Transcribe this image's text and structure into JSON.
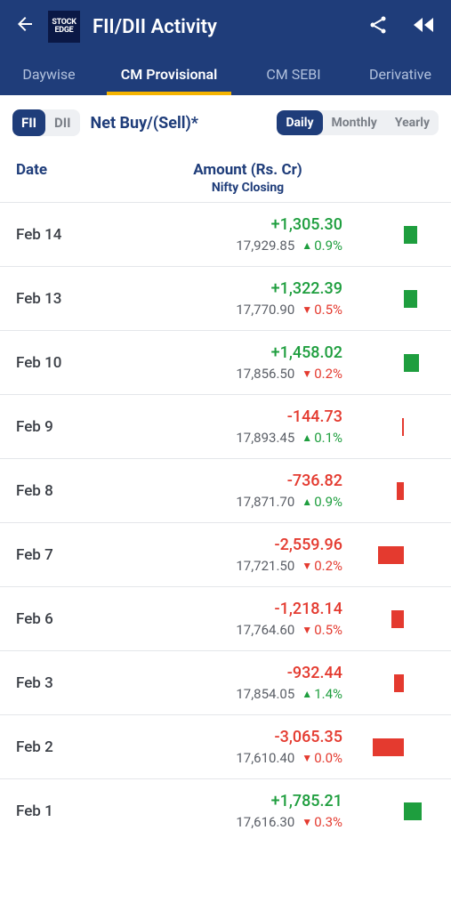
{
  "header": {
    "title": "FII/DII Activity",
    "logo_top": "STOCK",
    "logo_bottom": "EDGE"
  },
  "tabs": [
    {
      "label": "Daywise",
      "active": false
    },
    {
      "label": "CM Provisional",
      "active": true
    },
    {
      "label": "CM SEBI",
      "active": false
    },
    {
      "label": "Derivative",
      "active": false
    }
  ],
  "toggle": {
    "fii": "FII",
    "dii": "DII",
    "active": "fii"
  },
  "net_label": "Net Buy/(Sell)*",
  "period": {
    "daily": "Daily",
    "monthly": "Monthly",
    "yearly": "Yearly",
    "active": "daily"
  },
  "columns": {
    "date": "Date",
    "amount": "Amount (Rs. Cr)",
    "sub": "Nifty Closing"
  },
  "colors": {
    "green": "#1e9e3e",
    "red": "#e43a2f",
    "header_bg": "#1f3d7a",
    "tab_underline": "#f5b400"
  },
  "max_abs_amount": 3065.35,
  "rows": [
    {
      "date": "Feb 14",
      "amount": "+1,305.30",
      "amount_val": 1305.3,
      "sign": "pos",
      "nifty": "17,929.85",
      "dir": "up",
      "pct": "0.9%"
    },
    {
      "date": "Feb 13",
      "amount": "+1,322.39",
      "amount_val": 1322.39,
      "sign": "pos",
      "nifty": "17,770.90",
      "dir": "down",
      "pct": "0.5%"
    },
    {
      "date": "Feb 10",
      "amount": "+1,458.02",
      "amount_val": 1458.02,
      "sign": "pos",
      "nifty": "17,856.50",
      "dir": "down",
      "pct": "0.2%"
    },
    {
      "date": "Feb 9",
      "amount": "-144.73",
      "amount_val": -144.73,
      "sign": "neg",
      "nifty": "17,893.45",
      "dir": "up",
      "pct": "0.1%"
    },
    {
      "date": "Feb 8",
      "amount": "-736.82",
      "amount_val": -736.82,
      "sign": "neg",
      "nifty": "17,871.70",
      "dir": "up",
      "pct": "0.9%"
    },
    {
      "date": "Feb 7",
      "amount": "-2,559.96",
      "amount_val": -2559.96,
      "sign": "neg",
      "nifty": "17,721.50",
      "dir": "down",
      "pct": "0.2%"
    },
    {
      "date": "Feb 6",
      "amount": "-1,218.14",
      "amount_val": -1218.14,
      "sign": "neg",
      "nifty": "17,764.60",
      "dir": "down",
      "pct": "0.5%"
    },
    {
      "date": "Feb 3",
      "amount": "-932.44",
      "amount_val": -932.44,
      "sign": "neg",
      "nifty": "17,854.05",
      "dir": "up",
      "pct": "1.4%"
    },
    {
      "date": "Feb 2",
      "amount": "-3,065.35",
      "amount_val": -3065.35,
      "sign": "neg",
      "nifty": "17,610.40",
      "dir": "down",
      "pct": "0.0%"
    },
    {
      "date": "Feb 1",
      "amount": "+1,785.21",
      "amount_val": 1785.21,
      "sign": "pos",
      "nifty": "17,616.30",
      "dir": "down",
      "pct": "0.3%"
    }
  ]
}
